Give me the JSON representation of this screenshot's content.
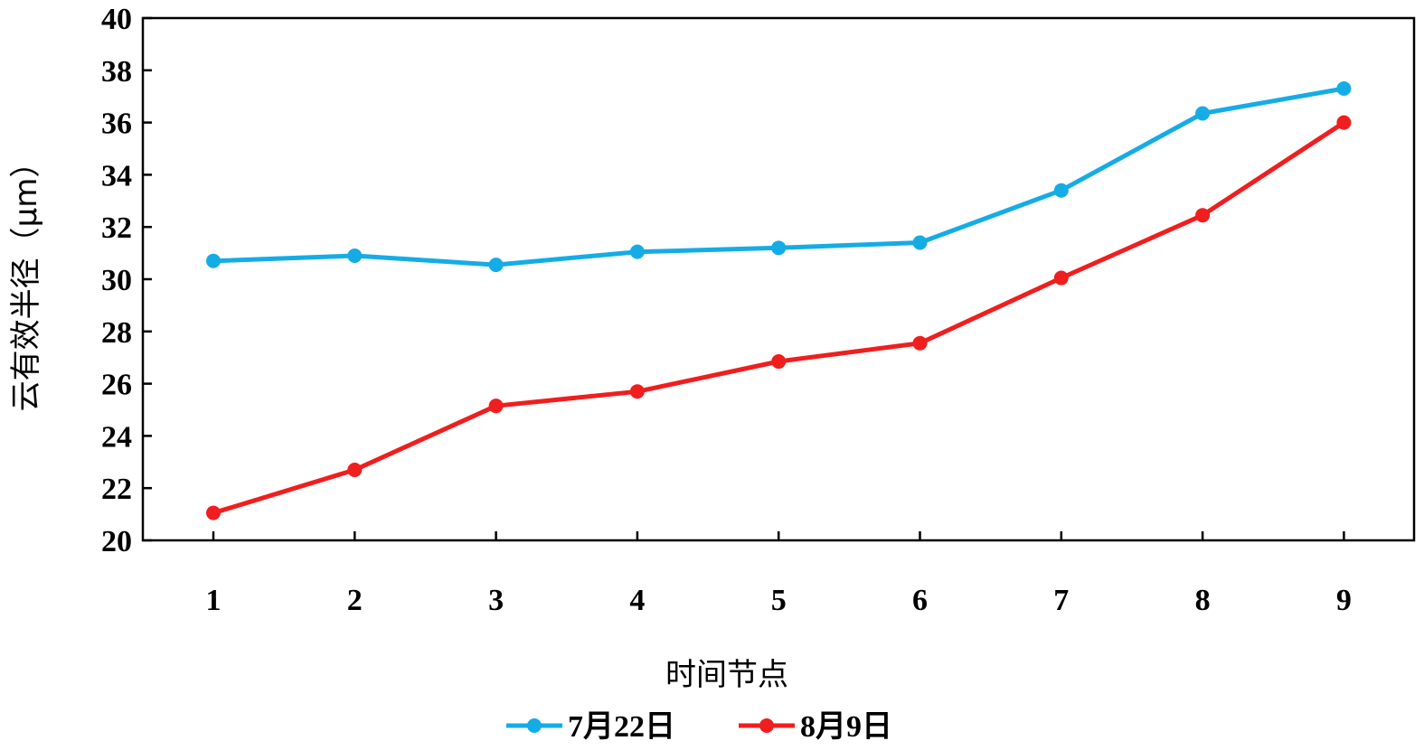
{
  "chart_data": {
    "type": "line",
    "title": "",
    "xlabel": "时间节点",
    "ylabel": "云有效半径（μm）",
    "x": [
      1,
      2,
      3,
      4,
      5,
      6,
      7,
      8,
      9
    ],
    "x_tick_labels": [
      "1",
      "2",
      "3",
      "4",
      "5",
      "6",
      "7",
      "8",
      "9"
    ],
    "ylim": [
      20,
      40
    ],
    "y_ticks": [
      20,
      22,
      24,
      26,
      28,
      30,
      32,
      34,
      36,
      38,
      40
    ],
    "y_tick_labels": [
      "20",
      "22",
      "24",
      "26",
      "28",
      "30",
      "32",
      "34",
      "36",
      "38",
      "40"
    ],
    "grid": false,
    "legend_position": "bottom",
    "series": [
      {
        "name": "7月22日",
        "color": "#15ACE6",
        "values": [
          30.7,
          30.9,
          30.55,
          31.05,
          31.2,
          31.4,
          33.4,
          36.35,
          37.3
        ]
      },
      {
        "name": "8月9日",
        "color": "#F01E1E",
        "values": [
          21.05,
          22.7,
          25.15,
          25.7,
          26.85,
          27.55,
          30.05,
          32.45,
          36.0
        ]
      }
    ]
  }
}
